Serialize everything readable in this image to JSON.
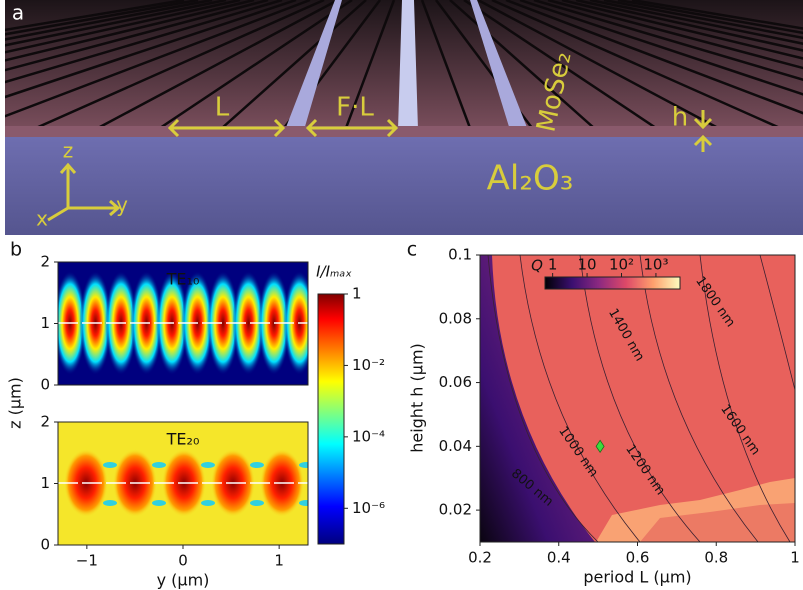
{
  "panel_labels": [
    "a",
    "b",
    "c"
  ],
  "illustration": {
    "period": "L",
    "gap": "F·L",
    "layer": "MoSe₂",
    "thickness": "h",
    "substrate": "Al₂O₃",
    "axes": [
      "z",
      "y",
      "x"
    ]
  },
  "chart_data": [
    {
      "type": "heatmap",
      "annotation": "TE₁₀",
      "xlim": [
        -1.3,
        1.3
      ],
      "ylim": [
        0,
        2
      ],
      "yticks": [
        0,
        1,
        2
      ],
      "colorbar": {
        "label": "I/Iₘₐₓ",
        "scale": "log",
        "clim": [
          1e-07,
          1
        ],
        "ticks": [
          1,
          {
            "value": 0.01,
            "label": "10⁻²"
          },
          {
            "value": 0.0001,
            "label": "10⁻⁴"
          },
          {
            "value": 1e-06,
            "label": "10⁻⁶"
          }
        ]
      }
    },
    {
      "type": "heatmap",
      "annotation": "TE₂₀",
      "xlabel": "y (μm)",
      "ylabel": "z (μm)",
      "xlim": [
        -1.3,
        1.3
      ],
      "xticks": [
        {
          "value": -1,
          "label": "−1"
        },
        0,
        1
      ],
      "ylim": [
        0,
        2
      ],
      "yticks": [
        0,
        1,
        2
      ]
    },
    {
      "type": "heatmap",
      "xlabel": "period L (μm)",
      "ylabel": "height h (μm)",
      "xlim": [
        0.2,
        1
      ],
      "xticks": [
        0.2,
        0.4,
        0.6,
        0.8,
        1
      ],
      "ylim": [
        0.01,
        0.1
      ],
      "yticks": [
        0.02,
        0.04,
        0.06,
        0.08,
        0.1
      ],
      "colorbar": {
        "label": "Q",
        "scale": "log",
        "clim": [
          0.6,
          5000
        ],
        "ticks": [
          1,
          10,
          {
            "value": 100,
            "label": "10²"
          },
          {
            "value": 1000,
            "label": "10³"
          }
        ]
      },
      "contour_labels": [
        "800 nm",
        "1000 nm",
        "1200 nm",
        "1400 nm",
        "1600 nm",
        "1800 nm"
      ],
      "marker": {
        "x": 0.505,
        "y": 0.04,
        "color": "#3ddc3d"
      }
    }
  ]
}
